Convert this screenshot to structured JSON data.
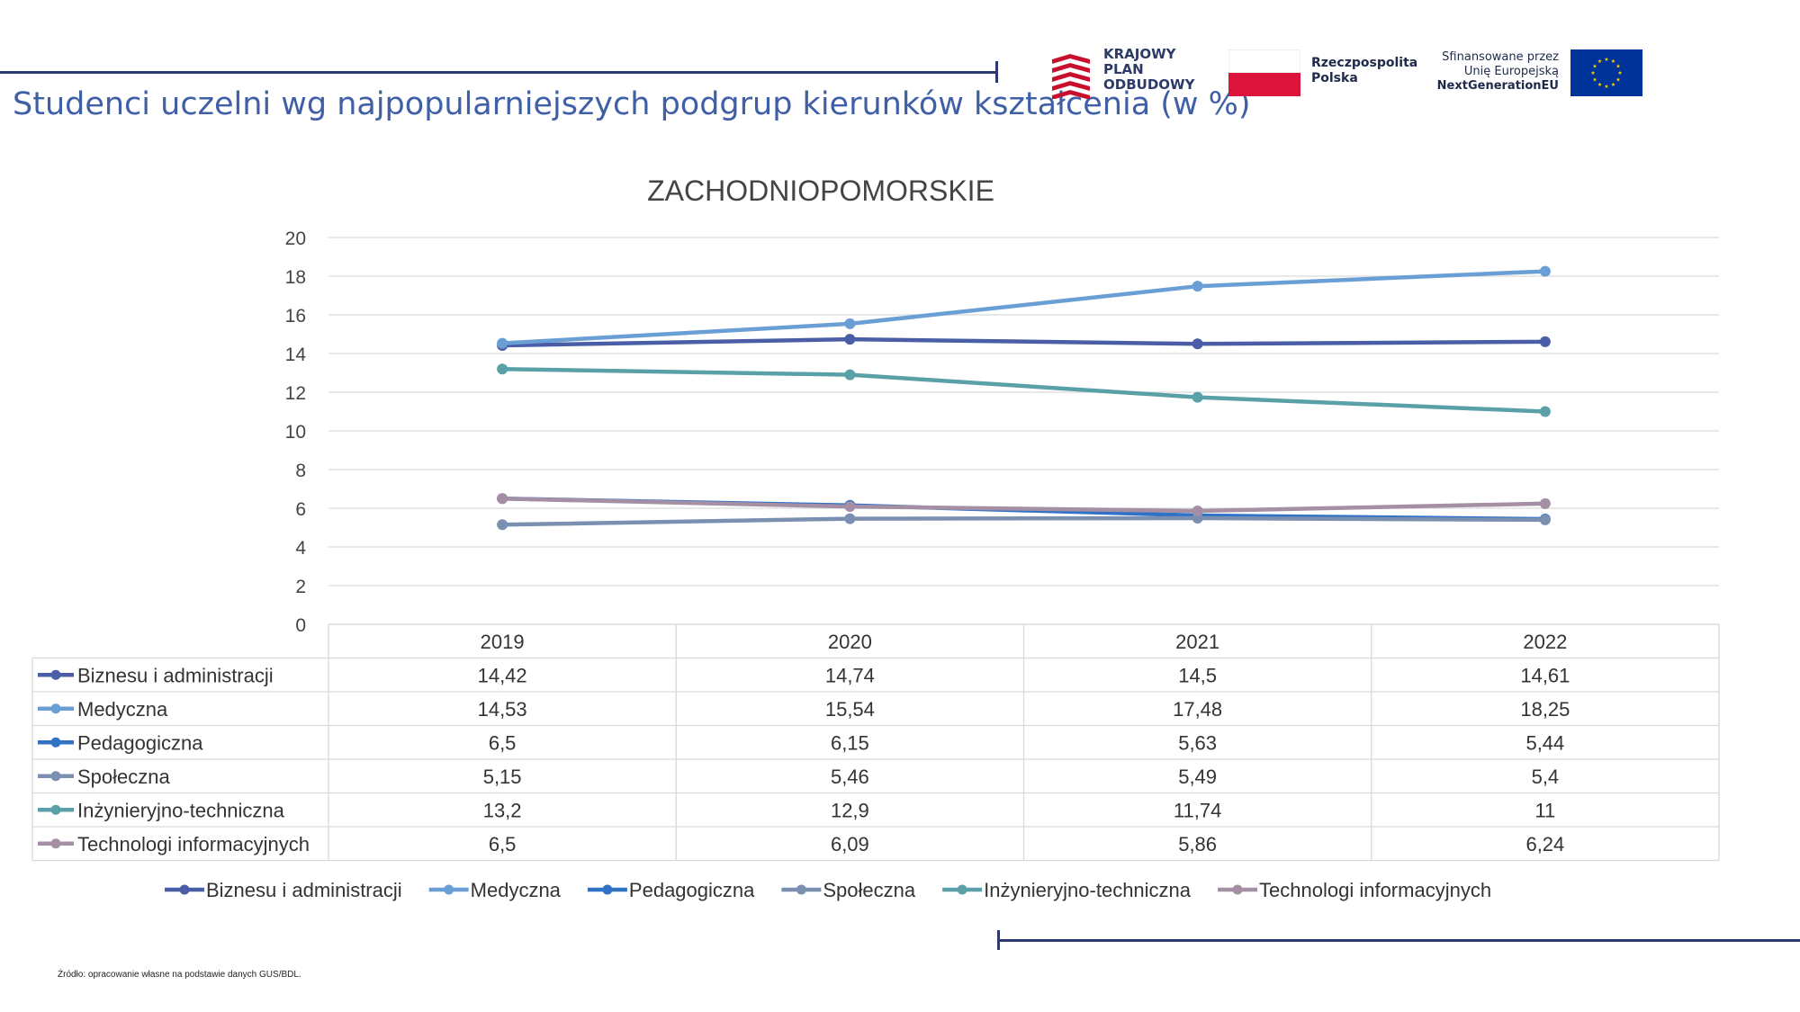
{
  "page": {
    "title": "Studenci uczelni wg najpopularniejszych podgrup kierunków kształcenia (w %)",
    "source_note": "Źródło: opracowanie własne na podstawie danych GUS/BDL."
  },
  "logos": {
    "kpo_lines": [
      "KRAJOWY",
      "PLAN",
      "ODBUDOWY"
    ],
    "rp_lines": [
      "Rzeczpospolita",
      "Polska"
    ],
    "eu_lines": [
      "Sfinansowane przez",
      "Unię Europejską",
      "NextGenerationEU"
    ],
    "kpo_color": "#c8102e",
    "flag_red": "#dc143c",
    "eu_blue": "#003399",
    "eu_star": "#ffcc00"
  },
  "chart_data": {
    "type": "line",
    "title": "ZACHODNIOPOMORSKIE",
    "categories": [
      "2019",
      "2020",
      "2021",
      "2022"
    ],
    "ylim": [
      0,
      20
    ],
    "yticks": [
      0,
      2,
      4,
      6,
      8,
      10,
      12,
      14,
      16,
      18,
      20
    ],
    "grid": true,
    "legend_position": "bottom",
    "data_table": true,
    "series": [
      {
        "name": "Biznesu i administracji",
        "values": [
          14.42,
          14.74,
          14.5,
          14.61
        ],
        "labels": [
          "14,42",
          "14,74",
          "14,5",
          "14,61"
        ],
        "color": "#4a5ea8"
      },
      {
        "name": "Medyczna",
        "values": [
          14.53,
          15.54,
          17.48,
          18.25
        ],
        "labels": [
          "14,53",
          "15,54",
          "17,48",
          "18,25"
        ],
        "color": "#6a9fd6"
      },
      {
        "name": "Pedagogiczna",
        "values": [
          6.5,
          6.15,
          5.63,
          5.44
        ],
        "labels": [
          "6,5",
          "6,15",
          "5,63",
          "5,44"
        ],
        "color": "#2f72c6"
      },
      {
        "name": "Społeczna",
        "values": [
          5.15,
          5.46,
          5.49,
          5.4
        ],
        "labels": [
          "5,15",
          "5,46",
          "5,49",
          "5,4"
        ],
        "color": "#7b8fb0"
      },
      {
        "name": "Inżynieryjno-techniczna",
        "values": [
          13.2,
          12.9,
          11.74,
          11
        ],
        "labels": [
          "13,2",
          "12,9",
          "11,74",
          "11"
        ],
        "color": "#5aa0a8"
      },
      {
        "name": "Technologi informacyjnych",
        "values": [
          6.5,
          6.09,
          5.86,
          6.24
        ],
        "labels": [
          "6,5",
          "6,09",
          "5,86",
          "6,24"
        ],
        "color": "#a48fa4"
      }
    ]
  }
}
